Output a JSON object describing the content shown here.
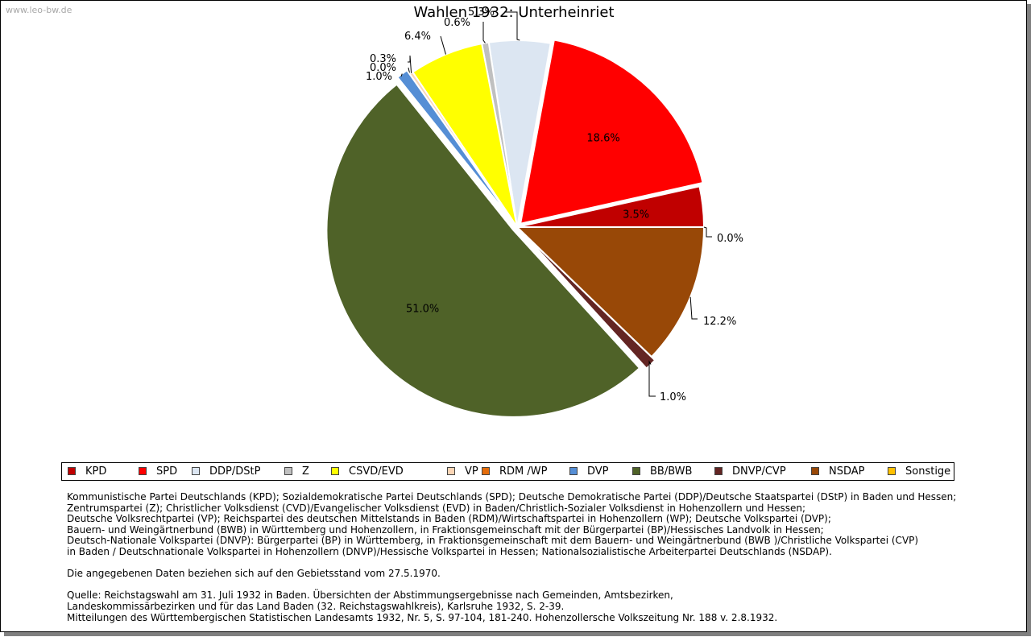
{
  "watermark": "www.leo-bw.de",
  "chart_data": {
    "type": "pie",
    "title": "Wahlen 1932:  Unterheinriet",
    "start_angle_deg": 0,
    "direction": "counterclockwise",
    "slices": [
      {
        "name": "KPD",
        "value": 3.5,
        "label": "3.5%",
        "color": "#c00000",
        "exploded": false
      },
      {
        "name": "SPD",
        "value": 18.6,
        "label": "18.6%",
        "color": "#ff0000",
        "exploded": true
      },
      {
        "name": "DDP/DStP",
        "value": 5.3,
        "label": "5.3%",
        "color": "#dce6f2",
        "exploded": false
      },
      {
        "name": "Z",
        "value": 0.6,
        "label": "0.6%",
        "color": "#c0c0c0",
        "exploded": false
      },
      {
        "name": "CSVD/EVD",
        "value": 6.4,
        "label": "6.4%",
        "color": "#ffff00",
        "exploded": false
      },
      {
        "name": "VP",
        "value": 0.3,
        "label": "0.3%",
        "color": "#fcd5b5",
        "exploded": false
      },
      {
        "name": "RDM /WP",
        "value": 0.0,
        "label": "0.0%",
        "color": "#e46c0a",
        "exploded": false
      },
      {
        "name": "DVP",
        "value": 1.0,
        "label": "1.0%",
        "color": "#558ed5",
        "exploded": true
      },
      {
        "name": "BB/BWB",
        "value": 51.0,
        "label": "51.0%",
        "color": "#4f6228",
        "exploded": true
      },
      {
        "name": "DNVP/CVP",
        "value": 1.0,
        "label": "1.0%",
        "color": "#632523",
        "exploded": true
      },
      {
        "name": "NSDAP",
        "value": 12.2,
        "label": "12.2%",
        "color": "#984807",
        "exploded": false
      },
      {
        "name": "Sonstige",
        "value": 0.0,
        "label": "0.0%",
        "color": "#ffc000",
        "exploded": false
      }
    ]
  },
  "notes": [
    "Kommunistische Partei Deutschlands (KPD); Sozialdemokratische Partei Deutschlands (SPD); Deutsche Demokratische Partei (DDP)/Deutsche Staatspartei (DStP) in Baden und Hessen;",
    "Zentrumspartei (Z); Christlicher Volksdienst (CVD)/Evangelischer Volksdienst (EVD) in Baden/Christlich-Sozialer Volksdienst in Hohenzollern und Hessen;",
    "Deutsche Volksrechtpartei (VP); Reichspartei des deutschen Mittelstands in Baden (RDM)/Wirtschaftspartei in Hohenzollern (WP); Deutsche Volkspartei (DVP);",
    "Bauern- und Weingärtnerbund (BWB) in Württemberg und Hohenzollern, in Fraktionsgemeinschaft mit der Bürgerpartei (BP)/Hessisches Landvolk in Hessen;",
    "Deutsch-Nationale Volkspartei (DNVP): Bürgerpartei (BP) in Württemberg, in Fraktionsgemeinschaft mit dem Bauern- und Weingärtnerbund (BWB )/Christliche Volkspartei (CVP)",
    "in Baden / Deutschnationale Volkspartei in Hohenzollern (DNVP)/Hessische Volkspartei in Hessen; Nationalsozialistische Arbeiterpartei Deutschlands (NSDAP).",
    "",
    "Die angegebenen Daten beziehen sich auf den Gebietsstand vom 27.5.1970.",
    "",
    "Quelle: Reichstagswahl am 31. Juli 1932 in Baden. Übersichten der Abstimmungsergebnisse nach Gemeinden, Amtsbezirken,",
    "Landeskommissärbezirken und für das Land Baden (32. Reichstagswahlkreis), Karlsruhe 1932, S. 2-39.",
    "Mitteilungen des Württembergischen Statistischen Landesamts 1932, Nr. 5, S. 97-104, 181-240. Hohenzollersche Volkszeitung Nr. 188 v. 2.8.1932."
  ]
}
